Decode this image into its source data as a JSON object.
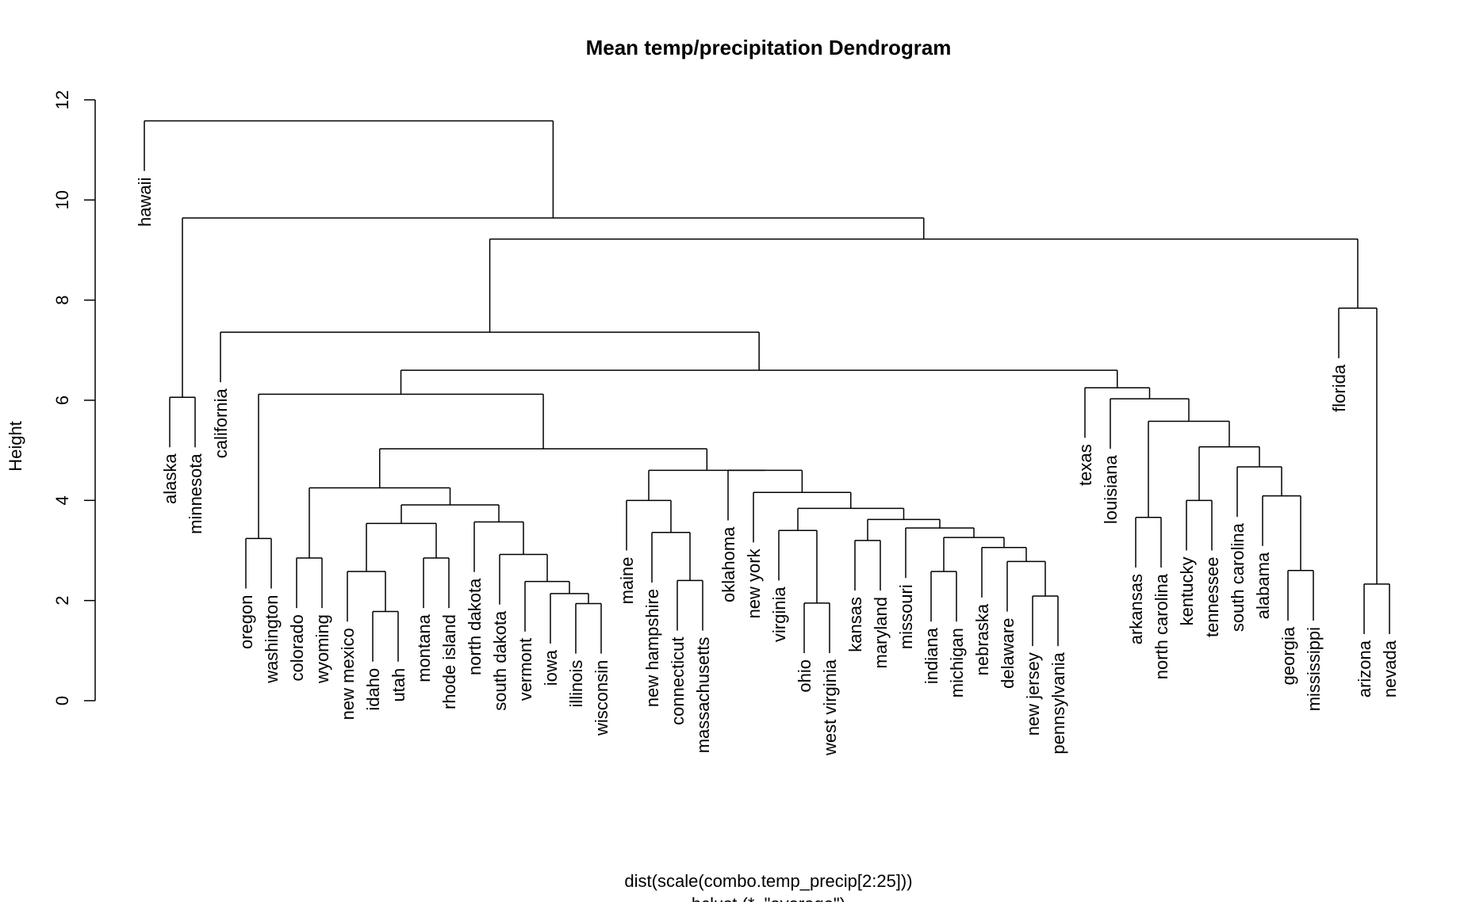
{
  "chart_data": {
    "type": "dendrogram",
    "title": "Mean temp/precipitation Dendrogram",
    "ylabel": "Height",
    "xlabel": "dist(scale(combo.temp_precip[2:25]))",
    "sub": "hclust (*, \"average\")",
    "ylim": [
      0,
      12
    ],
    "yticks": [
      "0",
      "2",
      "4",
      "6",
      "8",
      "10",
      "12"
    ],
    "leaves": [
      "hawaii",
      "alaska",
      "minnesota",
      "california",
      "oregon",
      "washington",
      "colorado",
      "wyoming",
      "new mexico",
      "idaho",
      "utah",
      "montana",
      "rhode island",
      "north dakota",
      "south dakota",
      "vermont",
      "iowa",
      "illinois",
      "wisconsin",
      "maine",
      "new hampshire",
      "connecticut",
      "massachusetts",
      "oklahoma",
      "new york",
      "virginia",
      "ohio",
      "west virginia",
      "kansas",
      "maryland",
      "missouri",
      "indiana",
      "michigan",
      "nebraska",
      "delaware",
      "new jersey",
      "pennsylvania",
      "texas",
      "louisiana",
      "arkansas",
      "north carolina",
      "kentucky",
      "tennessee",
      "south carolina",
      "alabama",
      "georgia",
      "mississippi",
      "florida",
      "arizona",
      "nevada"
    ],
    "merges": [
      {
        "a": "idaho",
        "b": "utah",
        "height": 1.78
      },
      {
        "a": "illinois",
        "b": "wisconsin",
        "height": 1.94
      },
      {
        "a": "ohio",
        "b": "west virginia",
        "height": 1.95
      },
      {
        "a": "new jersey",
        "b": "pennsylvania",
        "height": 2.09
      },
      {
        "a": "iowa",
        "b": "illinois+wisconsin",
        "height": 2.14
      },
      {
        "a": "arizona",
        "b": "nevada",
        "height": 2.33
      },
      {
        "a": "vermont",
        "b": "iowa+illinois+wisconsin",
        "height": 2.38
      },
      {
        "a": "connecticut",
        "b": "massachusetts",
        "height": 2.4
      },
      {
        "a": "new mexico",
        "b": "idaho+utah",
        "height": 2.58
      },
      {
        "a": "indiana",
        "b": "michigan",
        "height": 2.58
      },
      {
        "a": "georgia",
        "b": "mississippi",
        "height": 2.6
      },
      {
        "a": "delaware",
        "b": "new jersey+pennsylvania",
        "height": 2.78
      },
      {
        "a": "colorado",
        "b": "wyoming",
        "height": 2.85
      },
      {
        "a": "montana",
        "b": "rhode island",
        "height": 2.85
      },
      {
        "a": "south dakota",
        "b": "vermont+iowa+illinois+wisconsin",
        "height": 2.92
      },
      {
        "a": "nebraska",
        "b": "delaware+new jersey+pennsylvania",
        "height": 3.06
      },
      {
        "a": "kansas",
        "b": "maryland",
        "height": 3.2
      },
      {
        "a": "washington",
        "b": "oregon",
        "height": 3.24
      },
      {
        "a": "indiana+michigan",
        "b": "nebraska+delaware+new jersey+pennsylvania",
        "height": 3.26
      },
      {
        "a": "new hampshire",
        "b": "connecticut+massachusetts",
        "height": 3.36
      },
      {
        "a": "virginia",
        "b": "ohio+west virginia",
        "height": 3.4
      },
      {
        "a": "missouri",
        "b": "indiana+michigan+nebraska+delaware+new jersey+pennsylvania",
        "height": 3.45
      },
      {
        "a": "new mexico+idaho+utah",
        "b": "montana+rhode island",
        "height": 3.54
      },
      {
        "a": "north dakota",
        "b": "south dakota+vermont+iowa+illinois+wisconsin",
        "height": 3.57
      },
      {
        "a": "kansas+maryland",
        "b": "missouri+indiana+michigan+nebraska+delaware+new jersey+pennsylvania",
        "height": 3.62
      },
      {
        "a": "arkansas",
        "b": "north carolina",
        "height": 3.66
      },
      {
        "a": "virginia+ohio+west virginia",
        "b": "kansas+maryland+missouri+indiana+michigan+nebraska+delaware+new jersey+pennsylvania",
        "height": 3.84
      },
      {
        "a": "new mexico+idaho+utah+montana+rhode island",
        "b": "north dakota+south dakota+vermont+iowa+illinois+wisconsin",
        "height": 3.91
      },
      {
        "a": "maine",
        "b": "new hampshire+connecticut+massachusetts",
        "height": 4.0
      },
      {
        "a": "kentucky",
        "b": "tennessee",
        "height": 4.0
      },
      {
        "a": "alabama",
        "b": "georgia+mississippi",
        "height": 4.09
      },
      {
        "a": "new york",
        "b": "virginia+ohio+west virginia+kansas+maryland+missouri+indiana+michigan+nebraska+delaware+new jersey+pennsylvania",
        "height": 4.16
      },
      {
        "a": "colorado+wyoming",
        "b": "new mexico+idaho+utah+montana+rhode island+north dakota+south dakota+vermont+iowa+illinois+wisconsin",
        "height": 4.25
      },
      {
        "a": "oklahoma",
        "b": "new york+virginia+ohio+west virginia+kansas+maryland+missouri+indiana+michigan+nebraska+delaware+new jersey+pennsylvania",
        "height": 4.6
      },
      {
        "a": "south carolina",
        "b": "alabama+georgia+mississippi",
        "height": 4.67
      },
      {
        "a": "maine+new hampshire+connecticut+massachusetts",
        "b": "oklahoma+new york+virginia+ohio+west virginia+kansas+maryland+missouri+indiana+michigan+nebraska+delaware+new jersey+pennsylvania",
        "height": 4.6
      },
      {
        "a": "colorado+wyoming+new mexico+idaho+utah+montana+rhode island+north dakota+south dakota+vermont+iowa+illinois+wisconsin",
        "b": "maine+new hampshire+connecticut+massachusetts+oklahoma+new york+virginia+ohio+west virginia+kansas+maryland+missouri+indiana+michigan+nebraska+delaware+new jersey+pennsylvania",
        "height": 5.03
      },
      {
        "a": "kentucky+tennessee",
        "b": "south carolina+alabama+georgia+mississippi",
        "height": 5.07
      },
      {
        "a": "arkansas+north carolina",
        "b": "kentucky+tennessee+south carolina+alabama+georgia+mississippi",
        "height": 5.58
      },
      {
        "a": "louisiana",
        "b": "arkansas+north carolina+kentucky+tennessee+south carolina+alabama+georgia+mississippi",
        "height": 6.03
      },
      {
        "a": "alaska",
        "b": "minnesota",
        "height": 6.06
      },
      {
        "a": "oregon+washington",
        "b": "colorado+wyoming+new mexico+idaho+utah+montana+rhode island+north dakota+south dakota+vermont+iowa+illinois+wisconsin+maine+new hampshire+connecticut+massachusetts+oklahoma+new york+virginia+ohio+west virginia+kansas+maryland+missouri+indiana+michigan+nebraska+delaware+new jersey+pennsylvania",
        "height": 6.12
      },
      {
        "a": "texas",
        "b": "louisiana+arkansas+north carolina+kentucky+tennessee+south carolina+alabama+georgia+mississippi",
        "height": 6.25
      },
      {
        "a": "oregon … pennsylvania",
        "b": "texas … mississippi",
        "height": 6.6
      },
      {
        "a": "california",
        "b": "oregon … mississippi",
        "height": 7.36
      },
      {
        "a": "florida",
        "b": "arizona+nevada",
        "height": 7.84
      },
      {
        "a": "california … mississippi",
        "b": "florida+arizona+nevada",
        "height": 9.22
      },
      {
        "a": "alaska+minnesota",
        "b": "california … nevada",
        "height": 9.64
      },
      {
        "a": "hawaii",
        "b": "alaska … nevada",
        "height": 11.58
      }
    ],
    "leaf_tops": {
      "hawaii": 10.58,
      "alaska": 5.06,
      "minnesota": 5.06,
      "california": 6.36,
      "oregon": 2.24,
      "washington": 2.24,
      "colorado": 1.85,
      "wyoming": 1.85,
      "new mexico": 1.58,
      "idaho": 0.78,
      "utah": 0.78,
      "montana": 1.85,
      "rhode island": 1.85,
      "north dakota": 2.57,
      "south dakota": 1.92,
      "vermont": 1.38,
      "iowa": 1.14,
      "illinois": 0.94,
      "wisconsin": 0.94,
      "maine": 3.0,
      "new hampshire": 2.36,
      "connecticut": 1.4,
      "massachusetts": 1.4,
      "oklahoma": 3.6,
      "new york": 3.16,
      "virginia": 2.4,
      "ohio": 0.95,
      "west virginia": 0.95,
      "kansas": 2.2,
      "maryland": 2.2,
      "missouri": 2.45,
      "indiana": 1.58,
      "michigan": 1.58,
      "nebraska": 2.06,
      "delaware": 1.78,
      "new jersey": 1.09,
      "pennsylvania": 1.09,
      "texas": 5.25,
      "louisiana": 5.03,
      "arkansas": 2.66,
      "north carolina": 2.66,
      "kentucky": 3.0,
      "tennessee": 3.0,
      "south carolina": 3.67,
      "alabama": 3.09,
      "georgia": 1.6,
      "mississippi": 1.6,
      "florida": 6.84,
      "arizona": 1.33,
      "nevada": 1.33
    }
  }
}
